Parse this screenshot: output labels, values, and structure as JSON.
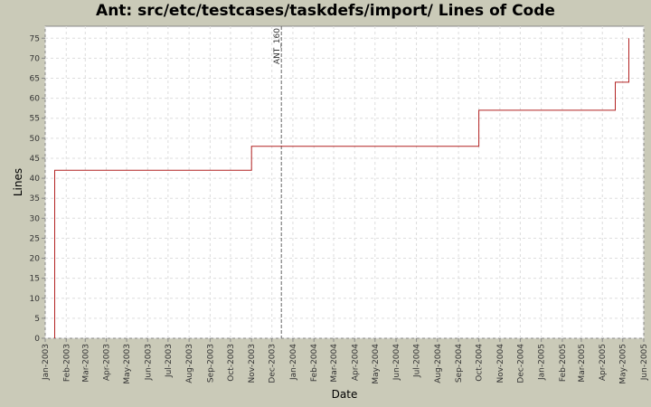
{
  "chart_data": {
    "type": "line",
    "title": "Ant: src/etc/testcases/taskdefs/import/ Lines of Code",
    "xlabel": "Date",
    "ylabel": "Lines",
    "ylim": [
      0,
      78
    ],
    "yticks": [
      0,
      5,
      10,
      15,
      20,
      25,
      30,
      35,
      40,
      45,
      50,
      55,
      60,
      65,
      70,
      75
    ],
    "xlim": [
      "2003-01-01",
      "2005-06-01"
    ],
    "xtick_labels": [
      "Jan-2003",
      "Feb-2003",
      "Mar-2003",
      "Apr-2003",
      "May-2003",
      "Jun-2003",
      "Jul-2003",
      "Aug-2003",
      "Sep-2003",
      "Oct-2003",
      "Nov-2003",
      "Dec-2003",
      "Jan-2004",
      "Feb-2004",
      "Mar-2004",
      "Apr-2004",
      "May-2004",
      "Jun-2004",
      "Jul-2004",
      "Aug-2004",
      "Sep-2004",
      "Oct-2004",
      "Nov-2004",
      "Dec-2004",
      "Jan-2005",
      "Feb-2005",
      "Mar-2005",
      "Apr-2005",
      "May-2005",
      "Jun-2005"
    ],
    "grid": true,
    "line_color": "#b22222",
    "step": true,
    "series": [
      {
        "x": [
          "2003-01-15",
          "2003-01-15",
          "2003-11-01",
          "2003-11-01",
          "2004-10-01",
          "2004-10-01",
          "2005-04-20",
          "2005-04-20",
          "2005-05-10",
          "2005-05-10"
        ],
        "y": [
          0,
          42,
          42,
          48,
          48,
          57,
          57,
          64,
          64,
          75
        ]
      }
    ],
    "markers": [
      {
        "label": "ANT_160",
        "x": "2003-12-15"
      }
    ]
  }
}
